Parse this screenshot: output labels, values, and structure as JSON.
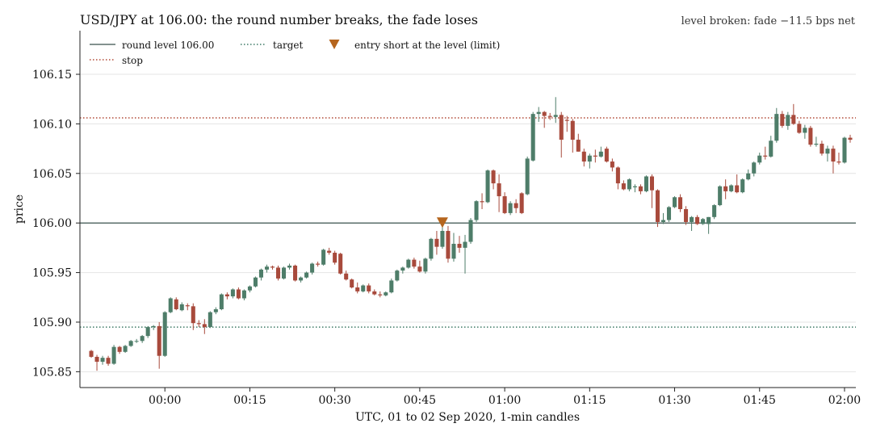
{
  "chart_data": {
    "type": "candlestick",
    "title": "USD/JPY at 106.00: the round number breaks, the fade loses",
    "subtitle": "level broken: fade −11.5 bps net",
    "xlabel": "UTC, 01 to 02 Sep 2020, 1-min candles",
    "ylabel": "price",
    "x_tick_labels": [
      "00:00",
      "00:15",
      "00:30",
      "00:45",
      "01:00",
      "01:15",
      "01:30",
      "01:45",
      "02:00"
    ],
    "x_tick_minutes": [
      0,
      15,
      30,
      45,
      60,
      75,
      90,
      105,
      120
    ],
    "xlim_minutes": [
      -15,
      122
    ],
    "y_ticks": [
      105.85,
      105.9,
      105.95,
      106.0,
      106.05,
      106.1,
      106.15
    ],
    "y_tick_labels": [
      "105.85",
      "105.90",
      "105.95",
      "106.00",
      "106.05",
      "106.10",
      "106.15"
    ],
    "ylim": [
      105.834,
      106.194
    ],
    "grid": "horizontal",
    "legend_position": "top-left",
    "levels": [
      {
        "name": "round level 106.00",
        "value": 106.0,
        "color": "#5a6e6a",
        "style": "solid"
      },
      {
        "name": "target",
        "value": 105.895,
        "color": "#3d7a66",
        "style": "dotted"
      },
      {
        "name": "stop",
        "value": 106.106,
        "color": "#b24a36",
        "style": "dotted"
      }
    ],
    "entry": {
      "name": "entry short at the level (limit)",
      "minute": 49,
      "value": 106.0,
      "color": "#b5651d"
    },
    "up_color": "#4e7d69",
    "down_color": "#a84a3c",
    "candles": [
      {
        "o": 105.871,
        "h": 105.872,
        "l": 105.864,
        "c": 105.865
      },
      {
        "o": 105.865,
        "h": 105.867,
        "l": 105.851,
        "c": 105.86
      },
      {
        "o": 105.86,
        "h": 105.866,
        "l": 105.857,
        "c": 105.864
      },
      {
        "o": 105.864,
        "h": 105.866,
        "l": 105.856,
        "c": 105.858
      },
      {
        "o": 105.858,
        "h": 105.877,
        "l": 105.857,
        "c": 105.875
      },
      {
        "o": 105.875,
        "h": 105.876,
        "l": 105.868,
        "c": 105.87
      },
      {
        "o": 105.87,
        "h": 105.877,
        "l": 105.869,
        "c": 105.876
      },
      {
        "o": 105.876,
        "h": 105.882,
        "l": 105.875,
        "c": 105.881
      },
      {
        "o": 105.881,
        "h": 105.883,
        "l": 105.879,
        "c": 105.881
      },
      {
        "o": 105.881,
        "h": 105.887,
        "l": 105.879,
        "c": 105.886
      },
      {
        "o": 105.886,
        "h": 105.896,
        "l": 105.884,
        "c": 105.895
      },
      {
        "o": 105.895,
        "h": 105.897,
        "l": 105.892,
        "c": 105.896
      },
      {
        "o": 105.896,
        "h": 105.9,
        "l": 105.853,
        "c": 105.866
      },
      {
        "o": 105.866,
        "h": 105.911,
        "l": 105.865,
        "c": 105.91
      },
      {
        "o": 105.91,
        "h": 105.925,
        "l": 105.909,
        "c": 105.924
      },
      {
        "o": 105.923,
        "h": 105.925,
        "l": 105.912,
        "c": 105.913
      },
      {
        "o": 105.912,
        "h": 105.92,
        "l": 105.911,
        "c": 105.918
      },
      {
        "o": 105.917,
        "h": 105.919,
        "l": 105.912,
        "c": 105.916
      },
      {
        "o": 105.916,
        "h": 105.919,
        "l": 105.892,
        "c": 105.899
      },
      {
        "o": 105.899,
        "h": 105.902,
        "l": 105.895,
        "c": 105.898
      },
      {
        "o": 105.898,
        "h": 105.903,
        "l": 105.888,
        "c": 105.895
      },
      {
        "o": 105.895,
        "h": 105.911,
        "l": 105.894,
        "c": 105.91
      },
      {
        "o": 105.91,
        "h": 105.915,
        "l": 105.908,
        "c": 105.913
      },
      {
        "o": 105.913,
        "h": 105.929,
        "l": 105.912,
        "c": 105.928
      },
      {
        "o": 105.928,
        "h": 105.93,
        "l": 105.923,
        "c": 105.926
      },
      {
        "o": 105.926,
        "h": 105.934,
        "l": 105.924,
        "c": 105.933
      },
      {
        "o": 105.933,
        "h": 105.935,
        "l": 105.923,
        "c": 105.924
      },
      {
        "o": 105.924,
        "h": 105.933,
        "l": 105.922,
        "c": 105.932
      },
      {
        "o": 105.932,
        "h": 105.937,
        "l": 105.93,
        "c": 105.936
      },
      {
        "o": 105.936,
        "h": 105.946,
        "l": 105.935,
        "c": 105.945
      },
      {
        "o": 105.945,
        "h": 105.954,
        "l": 105.942,
        "c": 105.953
      },
      {
        "o": 105.953,
        "h": 105.958,
        "l": 105.95,
        "c": 105.956
      },
      {
        "o": 105.956,
        "h": 105.957,
        "l": 105.953,
        "c": 105.955
      },
      {
        "o": 105.955,
        "h": 105.957,
        "l": 105.942,
        "c": 105.944
      },
      {
        "o": 105.944,
        "h": 105.956,
        "l": 105.943,
        "c": 105.955
      },
      {
        "o": 105.955,
        "h": 105.959,
        "l": 105.953,
        "c": 105.957
      },
      {
        "o": 105.957,
        "h": 105.958,
        "l": 105.941,
        "c": 105.942
      },
      {
        "o": 105.942,
        "h": 105.946,
        "l": 105.94,
        "c": 105.945
      },
      {
        "o": 105.945,
        "h": 105.951,
        "l": 105.944,
        "c": 105.95
      },
      {
        "o": 105.95,
        "h": 105.96,
        "l": 105.948,
        "c": 105.959
      },
      {
        "o": 105.959,
        "h": 105.961,
        "l": 105.956,
        "c": 105.958
      },
      {
        "o": 105.958,
        "h": 105.974,
        "l": 105.957,
        "c": 105.973
      },
      {
        "o": 105.972,
        "h": 105.975,
        "l": 105.968,
        "c": 105.97
      },
      {
        "o": 105.97,
        "h": 105.972,
        "l": 105.958,
        "c": 105.96
      },
      {
        "o": 105.969,
        "h": 105.97,
        "l": 105.948,
        "c": 105.949
      },
      {
        "o": 105.949,
        "h": 105.952,
        "l": 105.942,
        "c": 105.943
      },
      {
        "o": 105.943,
        "h": 105.944,
        "l": 105.934,
        "c": 105.935
      },
      {
        "o": 105.935,
        "h": 105.94,
        "l": 105.929,
        "c": 105.931
      },
      {
        "o": 105.931,
        "h": 105.938,
        "l": 105.93,
        "c": 105.937
      },
      {
        "o": 105.937,
        "h": 105.939,
        "l": 105.929,
        "c": 105.931
      },
      {
        "o": 105.931,
        "h": 105.933,
        "l": 105.927,
        "c": 105.928
      },
      {
        "o": 105.928,
        "h": 105.931,
        "l": 105.925,
        "c": 105.927
      },
      {
        "o": 105.927,
        "h": 105.931,
        "l": 105.926,
        "c": 105.93
      },
      {
        "o": 105.93,
        "h": 105.944,
        "l": 105.929,
        "c": 105.942
      },
      {
        "o": 105.942,
        "h": 105.953,
        "l": 105.941,
        "c": 105.952
      },
      {
        "o": 105.952,
        "h": 105.956,
        "l": 105.949,
        "c": 105.955
      },
      {
        "o": 105.955,
        "h": 105.964,
        "l": 105.954,
        "c": 105.963
      },
      {
        "o": 105.963,
        "h": 105.965,
        "l": 105.954,
        "c": 105.956
      },
      {
        "o": 105.956,
        "h": 105.962,
        "l": 105.95,
        "c": 105.951
      },
      {
        "o": 105.951,
        "h": 105.965,
        "l": 105.949,
        "c": 105.964
      },
      {
        "o": 105.964,
        "h": 105.985,
        "l": 105.962,
        "c": 105.984
      },
      {
        "o": 105.984,
        "h": 105.992,
        "l": 105.968,
        "c": 105.976
      },
      {
        "o": 105.976,
        "h": 106.0,
        "l": 105.974,
        "c": 105.992
      },
      {
        "o": 105.992,
        "h": 105.997,
        "l": 105.96,
        "c": 105.964
      },
      {
        "o": 105.964,
        "h": 105.99,
        "l": 105.961,
        "c": 105.979
      },
      {
        "o": 105.979,
        "h": 105.987,
        "l": 105.97,
        "c": 105.975
      },
      {
        "o": 105.975,
        "h": 105.988,
        "l": 105.949,
        "c": 105.981
      },
      {
        "o": 105.981,
        "h": 106.005,
        "l": 105.979,
        "c": 106.003
      },
      {
        "o": 106.003,
        "h": 106.023,
        "l": 106.001,
        "c": 106.022
      },
      {
        "o": 106.022,
        "h": 106.03,
        "l": 106.014,
        "c": 106.021
      },
      {
        "o": 106.021,
        "h": 106.054,
        "l": 106.02,
        "c": 106.053
      },
      {
        "o": 106.053,
        "h": 106.054,
        "l": 106.034,
        "c": 106.04
      },
      {
        "o": 106.04,
        "h": 106.049,
        "l": 106.011,
        "c": 106.027
      },
      {
        "o": 106.027,
        "h": 106.031,
        "l": 106.009,
        "c": 106.01
      },
      {
        "o": 106.01,
        "h": 106.022,
        "l": 106.008,
        "c": 106.02
      },
      {
        "o": 106.02,
        "h": 106.024,
        "l": 106.01,
        "c": 106.015
      },
      {
        "o": 106.03,
        "h": 106.031,
        "l": 106.009,
        "c": 106.01
      },
      {
        "o": 106.029,
        "h": 106.067,
        "l": 106.028,
        "c": 106.065
      },
      {
        "o": 106.063,
        "h": 106.112,
        "l": 106.062,
        "c": 106.11
      },
      {
        "o": 106.11,
        "h": 106.117,
        "l": 106.102,
        "c": 106.112
      },
      {
        "o": 106.112,
        "h": 106.113,
        "l": 106.096,
        "c": 106.108
      },
      {
        "o": 106.108,
        "h": 106.111,
        "l": 106.104,
        "c": 106.107
      },
      {
        "o": 106.107,
        "h": 106.127,
        "l": 106.101,
        "c": 106.109
      },
      {
        "o": 106.109,
        "h": 106.112,
        "l": 106.066,
        "c": 106.084
      },
      {
        "o": 106.104,
        "h": 106.108,
        "l": 106.092,
        "c": 106.103
      },
      {
        "o": 106.103,
        "h": 106.105,
        "l": 106.071,
        "c": 106.084
      },
      {
        "o": 106.084,
        "h": 106.09,
        "l": 106.072,
        "c": 106.072
      },
      {
        "o": 106.072,
        "h": 106.075,
        "l": 106.057,
        "c": 106.062
      },
      {
        "o": 106.062,
        "h": 106.07,
        "l": 106.055,
        "c": 106.068
      },
      {
        "o": 106.068,
        "h": 106.074,
        "l": 106.061,
        "c": 106.067
      },
      {
        "o": 106.067,
        "h": 106.077,
        "l": 106.066,
        "c": 106.072
      },
      {
        "o": 106.075,
        "h": 106.077,
        "l": 106.061,
        "c": 106.062
      },
      {
        "o": 106.062,
        "h": 106.065,
        "l": 106.052,
        "c": 106.056
      },
      {
        "o": 106.056,
        "h": 106.057,
        "l": 106.034,
        "c": 106.04
      },
      {
        "o": 106.04,
        "h": 106.043,
        "l": 106.033,
        "c": 106.034
      },
      {
        "o": 106.034,
        "h": 106.045,
        "l": 106.032,
        "c": 106.044
      },
      {
        "o": 106.036,
        "h": 106.039,
        "l": 106.031,
        "c": 106.037
      },
      {
        "o": 106.037,
        "h": 106.039,
        "l": 106.029,
        "c": 106.032
      },
      {
        "o": 106.032,
        "h": 106.048,
        "l": 106.031,
        "c": 106.047
      },
      {
        "o": 106.047,
        "h": 106.049,
        "l": 106.015,
        "c": 106.033
      },
      {
        "o": 106.033,
        "h": 106.034,
        "l": 105.996,
        "c": 106.001
      },
      {
        "o": 106.001,
        "h": 106.01,
        "l": 105.999,
        "c": 106.003
      },
      {
        "o": 106.003,
        "h": 106.017,
        "l": 106.001,
        "c": 106.016
      },
      {
        "o": 106.016,
        "h": 106.027,
        "l": 106.015,
        "c": 106.026
      },
      {
        "o": 106.026,
        "h": 106.029,
        "l": 106.011,
        "c": 106.014
      },
      {
        "o": 106.014,
        "h": 106.017,
        "l": 105.998,
        "c": 106.001
      },
      {
        "o": 106.001,
        "h": 106.007,
        "l": 105.992,
        "c": 106.006
      },
      {
        "o": 106.006,
        "h": 106.008,
        "l": 105.998,
        "c": 105.999
      },
      {
        "o": 105.999,
        "h": 106.005,
        "l": 105.998,
        "c": 106.004
      },
      {
        "o": 105.999,
        "h": 106.006,
        "l": 105.989,
        "c": 106.006
      },
      {
        "o": 106.006,
        "h": 106.019,
        "l": 106.004,
        "c": 106.018
      },
      {
        "o": 106.018,
        "h": 106.038,
        "l": 106.017,
        "c": 106.037
      },
      {
        "o": 106.037,
        "h": 106.044,
        "l": 106.024,
        "c": 106.032
      },
      {
        "o": 106.032,
        "h": 106.039,
        "l": 106.031,
        "c": 106.038
      },
      {
        "o": 106.038,
        "h": 106.049,
        "l": 106.03,
        "c": 106.031
      },
      {
        "o": 106.031,
        "h": 106.045,
        "l": 106.03,
        "c": 106.044
      },
      {
        "o": 106.044,
        "h": 106.054,
        "l": 106.043,
        "c": 106.05
      },
      {
        "o": 106.05,
        "h": 106.062,
        "l": 106.047,
        "c": 106.061
      },
      {
        "o": 106.061,
        "h": 106.071,
        "l": 106.059,
        "c": 106.068
      },
      {
        "o": 106.068,
        "h": 106.077,
        "l": 106.064,
        "c": 106.067
      },
      {
        "o": 106.067,
        "h": 106.088,
        "l": 106.066,
        "c": 106.083
      },
      {
        "o": 106.083,
        "h": 106.116,
        "l": 106.081,
        "c": 106.11
      },
      {
        "o": 106.11,
        "h": 106.113,
        "l": 106.096,
        "c": 106.098
      },
      {
        "o": 106.098,
        "h": 106.112,
        "l": 106.094,
        "c": 106.109
      },
      {
        "o": 106.109,
        "h": 106.12,
        "l": 106.099,
        "c": 106.1
      },
      {
        "o": 106.1,
        "h": 106.103,
        "l": 106.09,
        "c": 106.091
      },
      {
        "o": 106.091,
        "h": 106.099,
        "l": 106.085,
        "c": 106.096
      },
      {
        "o": 106.096,
        "h": 106.098,
        "l": 106.077,
        "c": 106.079
      },
      {
        "o": 106.079,
        "h": 106.087,
        "l": 106.077,
        "c": 106.08
      },
      {
        "o": 106.08,
        "h": 106.083,
        "l": 106.068,
        "c": 106.07
      },
      {
        "o": 106.07,
        "h": 106.078,
        "l": 106.062,
        "c": 106.075
      },
      {
        "o": 106.075,
        "h": 106.078,
        "l": 106.05,
        "c": 106.062
      },
      {
        "o": 106.062,
        "h": 106.071,
        "l": 106.059,
        "c": 106.061
      },
      {
        "o": 106.061,
        "h": 106.087,
        "l": 106.06,
        "c": 106.086
      },
      {
        "o": 106.086,
        "h": 106.089,
        "l": 106.081,
        "c": 106.084
      }
    ]
  }
}
